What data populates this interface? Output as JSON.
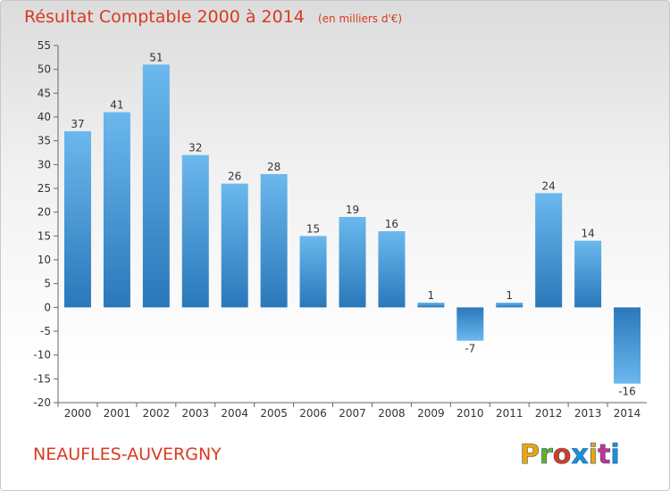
{
  "header": {
    "title": "Résultat Comptable 2000 à 2014",
    "unit": "(en milliers d'€)"
  },
  "footer": {
    "commune": "NEAUFLES-AUVERGNY",
    "brand": "Proxiti",
    "brand_colors": [
      "#f2a400",
      "#6ab023",
      "#d93a1f",
      "#1d8fd6",
      "#f2a400",
      "#c9318a",
      "#1d8fd6"
    ]
  },
  "colors": {
    "title": "#d93a1f",
    "bar_light": "#66b3eb",
    "bar_dark": "#2f7bbd"
  },
  "chart_data": {
    "type": "bar",
    "title": "Résultat Comptable 2000 à 2014",
    "subtitle": "(en milliers d'€)",
    "xlabel": "",
    "ylabel": "",
    "categories": [
      "2000",
      "2001",
      "2002",
      "2003",
      "2004",
      "2005",
      "2006",
      "2007",
      "2008",
      "2009",
      "2010",
      "2011",
      "2012",
      "2013",
      "2014"
    ],
    "values": [
      37,
      41,
      51,
      32,
      26,
      28,
      15,
      19,
      16,
      1,
      -7,
      1,
      24,
      14,
      -16
    ],
    "data_labels": [
      "37",
      "41",
      "51",
      "32",
      "26",
      "28",
      "15",
      "19",
      "16",
      "1",
      "-7",
      "1",
      "24",
      "14",
      "-16"
    ],
    "ylim": [
      -20,
      55
    ],
    "yticks": [
      55,
      50,
      45,
      40,
      35,
      30,
      25,
      20,
      15,
      10,
      5,
      0,
      -5,
      -10,
      -15,
      -20
    ],
    "ytick_labels": [
      "55",
      "50",
      "45",
      "40",
      "35",
      "30",
      "25",
      "20",
      "15",
      "10",
      "5",
      "0",
      "-5",
      "-10",
      "-15",
      "-20"
    ],
    "grid": false,
    "legend": "none"
  }
}
